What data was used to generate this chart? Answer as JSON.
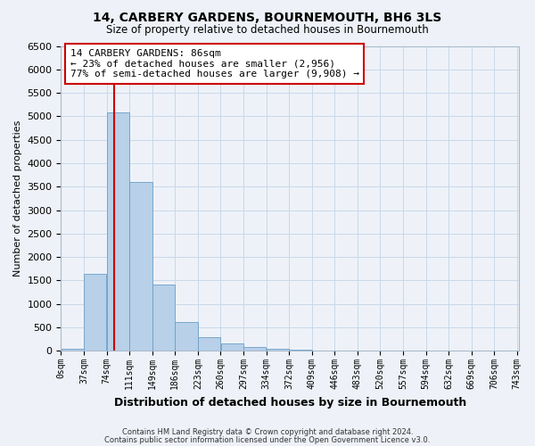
{
  "title": "14, CARBERY GARDENS, BOURNEMOUTH, BH6 3LS",
  "subtitle": "Size of property relative to detached houses in Bournemouth",
  "xlabel": "Distribution of detached houses by size in Bournemouth",
  "ylabel": "Number of detached properties",
  "footer_line1": "Contains HM Land Registry data © Crown copyright and database right 2024.",
  "footer_line2": "Contains public sector information licensed under the Open Government Licence v3.0.",
  "bin_edges": [
    0,
    37,
    74,
    111,
    148,
    185,
    222,
    259,
    296,
    333,
    370,
    407,
    444,
    481,
    518,
    555,
    592,
    629,
    666,
    703,
    740
  ],
  "bin_labels": [
    "0sqm",
    "37sqm",
    "74sqm",
    "111sqm",
    "149sqm",
    "186sqm",
    "223sqm",
    "260sqm",
    "297sqm",
    "334sqm",
    "372sqm",
    "409sqm",
    "446sqm",
    "483sqm",
    "520sqm",
    "557sqm",
    "594sqm",
    "632sqm",
    "669sqm",
    "706sqm",
    "743sqm"
  ],
  "bar_values": [
    50,
    1650,
    5080,
    3600,
    1420,
    610,
    300,
    150,
    80,
    40,
    20,
    10,
    5,
    0,
    0,
    0,
    0,
    0,
    0,
    0
  ],
  "bar_color": "#b8d0e8",
  "bar_edge_color": "#6a9fc8",
  "grid_color": "#c8d8ea",
  "background_color": "#eef2f8",
  "vline_x": 86,
  "vline_color": "#cc0000",
  "ylim": [
    0,
    6500
  ],
  "yticks": [
    0,
    500,
    1000,
    1500,
    2000,
    2500,
    3000,
    3500,
    4000,
    4500,
    5000,
    5500,
    6000,
    6500
  ],
  "annotation_title": "14 CARBERY GARDENS: 86sqm",
  "annotation_line1": "← 23% of detached houses are smaller (2,956)",
  "annotation_line2": "77% of semi-detached houses are larger (9,908) →",
  "annotation_box_facecolor": "#ffffff",
  "annotation_box_edgecolor": "#cc0000"
}
